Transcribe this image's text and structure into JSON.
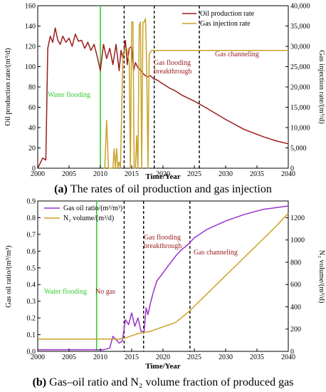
{
  "chart_data": [
    {
      "type": "line",
      "caption_letter": "(a)",
      "caption_text": "The rates of oil production and gas injection",
      "xlabel": "Time/Year",
      "ylabel": "Oil production rate/(m³/d)",
      "y2label": "Gas injection rate/(m³/d)",
      "xlim": [
        2000,
        2040
      ],
      "ylim": [
        0,
        160
      ],
      "y2lim": [
        0,
        40000
      ],
      "xticks": [
        "2000",
        "2005",
        "2010",
        "2015",
        "2020",
        "2025",
        "2030",
        "2035",
        "2040"
      ],
      "yticks": [
        "0",
        "20",
        "40",
        "60",
        "80",
        "100",
        "120",
        "140",
        "160"
      ],
      "y2ticks": [
        "0",
        "5,000",
        "10,000",
        "15,000",
        "20,000",
        "25,000",
        "30,000",
        "35,000",
        "40,000"
      ],
      "legend_position": "top-right",
      "series": [
        {
          "name": "Oil production rate",
          "color": "#9b1c1c",
          "axis": "left",
          "x": [
            2000,
            2000.8,
            2001.3,
            2001.6,
            2002,
            2002.4,
            2002.8,
            2003.2,
            2003.6,
            2004,
            2004.5,
            2005,
            2005.5,
            2006,
            2006.5,
            2007,
            2007.5,
            2008,
            2008.5,
            2009,
            2009.5,
            2010,
            2010.5,
            2011,
            2011.5,
            2012,
            2012.5,
            2013,
            2013.3,
            2013.6,
            2014,
            2014.3,
            2014.6,
            2015,
            2015.3,
            2015.6,
            2016,
            2016.5,
            2017,
            2017.5,
            2018,
            2018.5,
            2019,
            2020,
            2021,
            2022,
            2023,
            2025,
            2027,
            2030,
            2033,
            2036,
            2038,
            2040
          ],
          "values": [
            0,
            10,
            8,
            118,
            130,
            124,
            138,
            126,
            122,
            130,
            124,
            128,
            120,
            132,
            125,
            126,
            118,
            124,
            116,
            122,
            110,
            96,
            122,
            108,
            118,
            102,
            122,
            96,
            116,
            108,
            126,
            102,
            118,
            120,
            96,
            104,
            99,
            96,
            92,
            90,
            91,
            88,
            87,
            83,
            79,
            76,
            72,
            66,
            59,
            48,
            38,
            31,
            27,
            24
          ]
        },
        {
          "name": "Gas injection rate",
          "color": "#c9a227",
          "axis": "right",
          "x": [
            2010.5,
            2010.7,
            2011.0,
            2011.3,
            2011.5,
            2011.7,
            2012.0,
            2012.2,
            2012.4,
            2012.6,
            2012.8,
            2013.0,
            2013.2,
            2013.6,
            2013.8,
            2014.2,
            2014.6,
            2014.8,
            2015.0,
            2015.2,
            2015.4,
            2015.6,
            2015.8,
            2016.0,
            2016.2,
            2016.4,
            2016.6,
            2016.8,
            2017.0,
            2017.2,
            2017.4,
            2017.6,
            2017.8,
            2018.0,
            2018.2,
            2018.4,
            2018.6,
            2019,
            2020,
            2025,
            2030,
            2035,
            2040
          ],
          "values": [
            0,
            0,
            11800,
            0,
            0,
            0,
            0,
            4800,
            0,
            4800,
            0,
            1500,
            0,
            28000,
            29000,
            29500,
            26000,
            0,
            36000,
            36000,
            0,
            0,
            8000,
            0,
            35000,
            36000,
            0,
            35800,
            36000,
            36800,
            25000,
            0,
            28000,
            28500,
            29000,
            29000,
            29000,
            29000,
            29000,
            29000,
            29000,
            29000,
            29000
          ]
        }
      ],
      "vlines": [
        {
          "x": 2010,
          "color": "#33cc33",
          "style": "solid"
        },
        {
          "x": 2013.8,
          "color": "#000000",
          "style": "dashed"
        },
        {
          "x": 2018.6,
          "color": "#000000",
          "style": "dashed"
        },
        {
          "x": 2025.8,
          "color": "#000000",
          "style": "dashed"
        }
      ],
      "annotations": [
        {
          "text": "Water flooding",
          "color": "#33cc33"
        },
        {
          "text": "Gas flooding",
          "color": "#9b1c1c"
        },
        {
          "text": "breakthrough",
          "color": "#9b1c1c"
        },
        {
          "text": "Gas channeling",
          "color": "#9b1c1c"
        }
      ]
    },
    {
      "type": "line",
      "caption_letter": "(b)",
      "caption_text": "Gas–oil ratio and N₂ volume fraction of produced gas",
      "xlabel": "Time/Year",
      "ylabel": "Gas oil ratio/(m³/m³)",
      "y2label": "N₂ volume/(m³/d)",
      "xlim": [
        2000,
        2040
      ],
      "ylim": [
        0,
        0.9
      ],
      "y2lim": [
        0,
        1350
      ],
      "xticks": [
        "2000",
        "2005",
        "2010",
        "2015",
        "2020",
        "2025",
        "2030",
        "2035",
        "2040"
      ],
      "yticks": [
        "0.0",
        "0.1",
        "0.2",
        "0.3",
        "0.4",
        "0.5",
        "0.6",
        "0.7",
        "0.8",
        "0.9"
      ],
      "y2ticks": [
        "0",
        "200",
        "400",
        "600",
        "800",
        "1000",
        "1200"
      ],
      "legend_position": "top-left",
      "series": [
        {
          "name": "Gas oil ratio/(m³/m³)",
          "color": "#9933cc",
          "axis": "left",
          "x": [
            2000,
            2010.5,
            2011.5,
            2012,
            2012.5,
            2013,
            2013.5,
            2014,
            2014.5,
            2015,
            2015.5,
            2016,
            2016.5,
            2017,
            2017.3,
            2017.6,
            2018,
            2018.5,
            2019,
            2020,
            2021,
            2022,
            2023,
            2024,
            2025,
            2027,
            2030,
            2033,
            2036,
            2038,
            2040
          ],
          "values": [
            0.01,
            0.01,
            0.02,
            0.09,
            0.07,
            0.05,
            0.06,
            0.19,
            0.16,
            0.23,
            0.15,
            0.2,
            0.12,
            0.12,
            0.26,
            0.22,
            0.29,
            0.36,
            0.42,
            0.47,
            0.52,
            0.57,
            0.61,
            0.64,
            0.68,
            0.73,
            0.78,
            0.82,
            0.85,
            0.86,
            0.87
          ]
        },
        {
          "name": "N₂ volume/(m³/d)",
          "color": "#c9a227",
          "axis": "right",
          "x": [
            2000,
            2013,
            2014,
            2015,
            2016,
            2017,
            2018,
            2019,
            2020,
            2022,
            2024,
            2026,
            2028,
            2030,
            2032,
            2034,
            2036,
            2038,
            2040
          ],
          "values": [
            110,
            110,
            120,
            140,
            160,
            170,
            180,
            200,
            220,
            260,
            350,
            460,
            570,
            680,
            790,
            900,
            1010,
            1120,
            1240
          ]
        }
      ],
      "vlines": [
        {
          "x": 2009.4,
          "color": "#33cc33",
          "style": "solid"
        },
        {
          "x": 2013.8,
          "color": "#000000",
          "style": "dashed"
        },
        {
          "x": 2016.9,
          "color": "#000000",
          "style": "dashed"
        },
        {
          "x": 2024.3,
          "color": "#000000",
          "style": "dashed"
        }
      ],
      "annotations": [
        {
          "text": "Water flooding",
          "color": "#33cc33"
        },
        {
          "text": "No gas",
          "color": "#9b1c1c"
        },
        {
          "text": "Gas flooding",
          "color": "#9b1c1c"
        },
        {
          "text": "breakthrough",
          "color": "#9b1c1c"
        },
        {
          "text": "Gas channeling",
          "color": "#9b1c1c"
        }
      ]
    }
  ]
}
